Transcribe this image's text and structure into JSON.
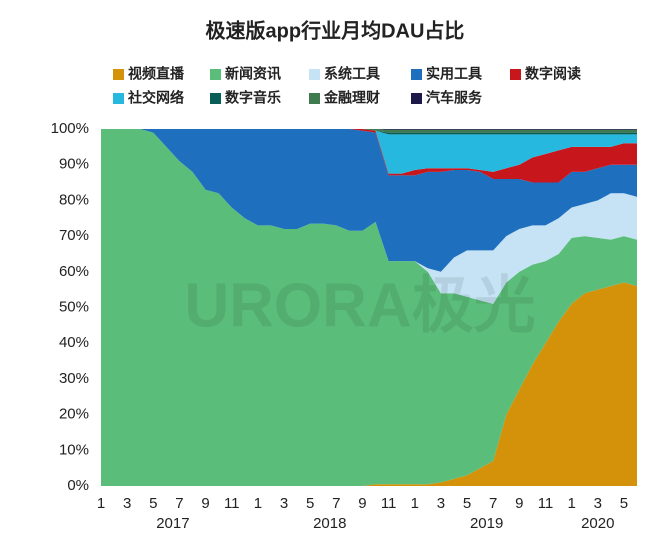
{
  "chart_data": {
    "type": "stacked_area_100",
    "title": "极速版app行业月均DAU占比",
    "watermark": "URORA极光",
    "categories": [
      "1",
      null,
      "3",
      null,
      "5",
      null,
      "7",
      null,
      "9",
      null,
      "11",
      null,
      "1",
      null,
      "3",
      null,
      "5",
      null,
      "7",
      null,
      "9",
      null,
      "11",
      null,
      "1",
      null,
      "3",
      null,
      "5",
      null,
      "7",
      null,
      "9",
      null,
      "11",
      null,
      "1",
      null,
      "3",
      null,
      "5",
      null
    ],
    "year_labels": [
      "2017",
      "2018",
      "2019",
      "2020"
    ],
    "ylim": [
      0,
      100
    ],
    "yticks": [
      {
        "value": 0,
        "label": "0%"
      },
      {
        "value": 10,
        "label": "10%"
      },
      {
        "value": 20,
        "label": "20%"
      },
      {
        "value": 30,
        "label": "30%"
      },
      {
        "value": 40,
        "label": "40%"
      },
      {
        "value": 50,
        "label": "50%"
      },
      {
        "value": 60,
        "label": "60%"
      },
      {
        "value": 70,
        "label": "70%"
      },
      {
        "value": 80,
        "label": "80%"
      },
      {
        "value": 90,
        "label": "90%"
      },
      {
        "value": 100,
        "label": "100%"
      }
    ],
    "series": [
      {
        "name": "视频直播",
        "color": "#d4920a",
        "values": [
          0,
          0,
          0,
          0,
          0,
          0,
          0,
          0,
          0,
          0,
          0,
          0,
          0,
          0,
          0,
          0,
          0,
          0,
          0,
          0,
          0,
          0.5,
          0.5,
          0.5,
          0.5,
          0.5,
          1,
          2,
          3,
          5,
          7,
          20,
          27,
          34,
          40,
          46,
          51,
          54,
          55,
          56,
          57,
          56
        ]
      },
      {
        "name": "新闻资讯",
        "color": "#5bbd7a",
        "values": [
          100,
          100,
          100,
          100,
          99,
          95,
          91,
          88,
          83,
          82,
          78,
          75,
          73,
          73,
          72,
          72,
          73.5,
          73.5,
          73,
          71.5,
          71.5,
          73.5,
          62.5,
          62.5,
          62.5,
          59.5,
          53,
          52,
          50,
          47,
          44,
          37,
          33,
          28,
          23,
          19,
          18.5,
          16,
          14.5,
          13,
          13,
          13
        ]
      },
      {
        "name": "系统工具",
        "color": "#c5e3f5",
        "values": [
          0,
          0,
          0,
          0,
          0,
          0,
          0,
          0,
          0,
          0,
          0,
          0,
          0,
          0,
          0,
          0,
          0,
          0,
          0,
          0,
          0,
          0,
          0,
          0,
          0,
          1,
          6,
          10,
          13,
          14,
          15,
          13,
          12,
          11,
          10,
          10,
          8.5,
          9,
          10.5,
          13,
          12,
          12
        ]
      },
      {
        "name": "实用工具",
        "color": "#1f6fbf",
        "values": [
          0,
          0,
          0,
          0,
          1,
          5,
          9,
          12,
          17,
          18,
          22,
          25,
          27,
          27,
          28,
          28,
          26.5,
          26.5,
          27,
          28.5,
          28,
          25,
          24,
          24,
          24,
          27,
          28,
          24.5,
          22.5,
          22,
          20,
          16,
          14,
          12,
          12,
          10,
          10,
          9,
          9,
          8,
          8,
          9
        ]
      },
      {
        "name": "数字阅读",
        "color": "#c8161d",
        "values": [
          0,
          0,
          0,
          0,
          0,
          0,
          0,
          0,
          0,
          0,
          0,
          0,
          0,
          0,
          0,
          0,
          0,
          0,
          0,
          0,
          0.5,
          0.5,
          0.5,
          0.5,
          1.5,
          1,
          1,
          0.5,
          0.5,
          0.5,
          2,
          3,
          4,
          7,
          8,
          9,
          7,
          7,
          6,
          5,
          6,
          6
        ]
      },
      {
        "name": "社交网络",
        "color": "#26b8de",
        "values": [
          0,
          0,
          0,
          0,
          0,
          0,
          0,
          0,
          0,
          0,
          0,
          0,
          0,
          0,
          0,
          0,
          0,
          0,
          0,
          0,
          0,
          0,
          11,
          11,
          10,
          9.5,
          9.5,
          9.5,
          9.5,
          10,
          10.5,
          9.5,
          8.5,
          6.5,
          5.5,
          4.5,
          3.5,
          3.5,
          3.5,
          3.5,
          2.5,
          2.5
        ]
      },
      {
        "name": "数字音乐",
        "color": "#0b5e58",
        "values": [
          0,
          0,
          0,
          0,
          0,
          0,
          0,
          0,
          0,
          0,
          0,
          0,
          0,
          0,
          0,
          0,
          0,
          0,
          0,
          0,
          0,
          0,
          0.5,
          0.5,
          0.5,
          0.5,
          0.5,
          0.5,
          0.5,
          0.5,
          0.5,
          0.5,
          0.5,
          0.5,
          0.5,
          0.5,
          0.5,
          0.5,
          0.5,
          0.5,
          0.5,
          0.5
        ]
      },
      {
        "name": "金融理财",
        "color": "#3f7b4f",
        "values": [
          0,
          0,
          0,
          0,
          0,
          0,
          0,
          0,
          0,
          0,
          0,
          0,
          0,
          0,
          0,
          0,
          0,
          0,
          0,
          0,
          0,
          0.5,
          0.8,
          0.8,
          0.8,
          0.8,
          0.8,
          0.8,
          0.8,
          0.8,
          0.8,
          0.8,
          0.8,
          0.8,
          0.8,
          0.8,
          0.8,
          0.8,
          0.8,
          0.8,
          0.8,
          0.8
        ]
      },
      {
        "name": "汽车服务",
        "color": "#1d1a4a",
        "values": [
          0,
          0,
          0,
          0,
          0,
          0,
          0,
          0,
          0,
          0,
          0,
          0,
          0,
          0,
          0,
          0,
          0,
          0,
          0,
          0,
          0,
          0,
          0.2,
          0.2,
          0.2,
          0.2,
          0.2,
          0.2,
          0.2,
          0.2,
          0.2,
          0.2,
          0.2,
          0.2,
          0.2,
          0.2,
          0.2,
          0.2,
          0.2,
          0.2,
          0.2,
          0.2
        ]
      }
    ]
  }
}
